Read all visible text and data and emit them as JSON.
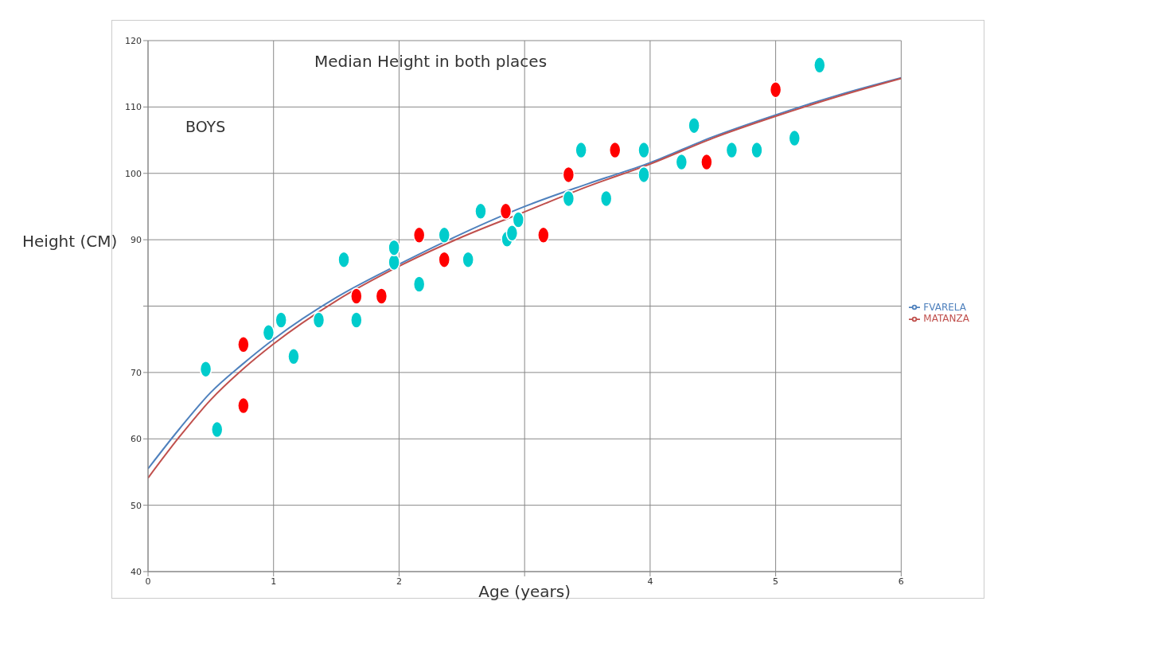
{
  "chart_data": {
    "type": "scatter",
    "title": "Median Height in both places",
    "xlabel": "Age (years)",
    "ylabel": "Height (CM)",
    "annotations": [
      "BOYS"
    ],
    "xlim": [
      0,
      6
    ],
    "xticks": [
      0,
      1,
      2,
      {
        "value": 3,
        "label": null
      },
      4,
      5,
      6
    ],
    "ylim": [
      40,
      120
    ],
    "yticks": [
      40,
      50,
      60,
      70,
      {
        "value": 80,
        "label": null
      },
      90,
      100,
      110,
      120
    ],
    "grid": true,
    "legend": "right",
    "marker": "circle",
    "series": [
      {
        "name": "FVARELA",
        "type": "line",
        "marker": "none",
        "color": "#4f81bd",
        "x": [
          0,
          0.25,
          0.5,
          0.75,
          1,
          1.5,
          2,
          2.5,
          3,
          3.5,
          4,
          4.5,
          5,
          5.5,
          6
        ],
        "values": [
          55.5,
          61.5,
          67.0,
          71.2,
          75.0,
          81.3,
          86.3,
          90.9,
          95.0,
          98.4,
          101.6,
          105.5,
          108.8,
          111.8,
          114.4
        ]
      },
      {
        "name": "MATANZA",
        "type": "line",
        "marker": "none",
        "color": "#c0504d",
        "x": [
          0,
          0.25,
          0.5,
          0.75,
          1,
          1.5,
          2,
          2.5,
          3,
          3.5,
          4,
          4.5,
          5,
          5.5,
          6
        ],
        "values": [
          54.1,
          60.3,
          65.9,
          70.4,
          74.3,
          80.8,
          86.0,
          90.4,
          94.2,
          98.0,
          101.4,
          105.3,
          108.6,
          111.6,
          114.3
        ]
      },
      {
        "color": "#00cccc",
        "x": [
          0.46,
          0.55,
          0.96,
          1.06,
          1.16,
          1.36,
          1.56,
          1.66,
          1.96,
          1.96,
          2.16,
          2.36,
          2.55,
          2.65,
          2.86,
          2.9,
          2.95,
          3.35,
          3.45,
          3.65,
          3.95,
          3.95,
          4.25,
          4.35,
          4.65,
          4.85,
          5.15,
          5.35
        ],
        "values": [
          70.5,
          61.4,
          76.0,
          77.9,
          72.4,
          77.9,
          87.0,
          77.9,
          86.6,
          88.8,
          83.3,
          90.7,
          87.0,
          94.3,
          90.1,
          91.0,
          93.0,
          96.2,
          103.5,
          96.2,
          103.5,
          99.8,
          101.7,
          107.2,
          103.5,
          103.5,
          105.3,
          116.3
        ]
      },
      {
        "color": "#ff0000",
        "x": [
          0.76,
          0.76,
          1.66,
          1.86,
          2.16,
          2.36,
          2.85,
          3.15,
          3.35,
          3.72,
          4.45,
          5.0
        ],
        "values": [
          74.2,
          65.0,
          81.5,
          81.5,
          90.7,
          87.0,
          94.3,
          90.7,
          99.8,
          103.5,
          101.7,
          112.6
        ]
      }
    ]
  }
}
